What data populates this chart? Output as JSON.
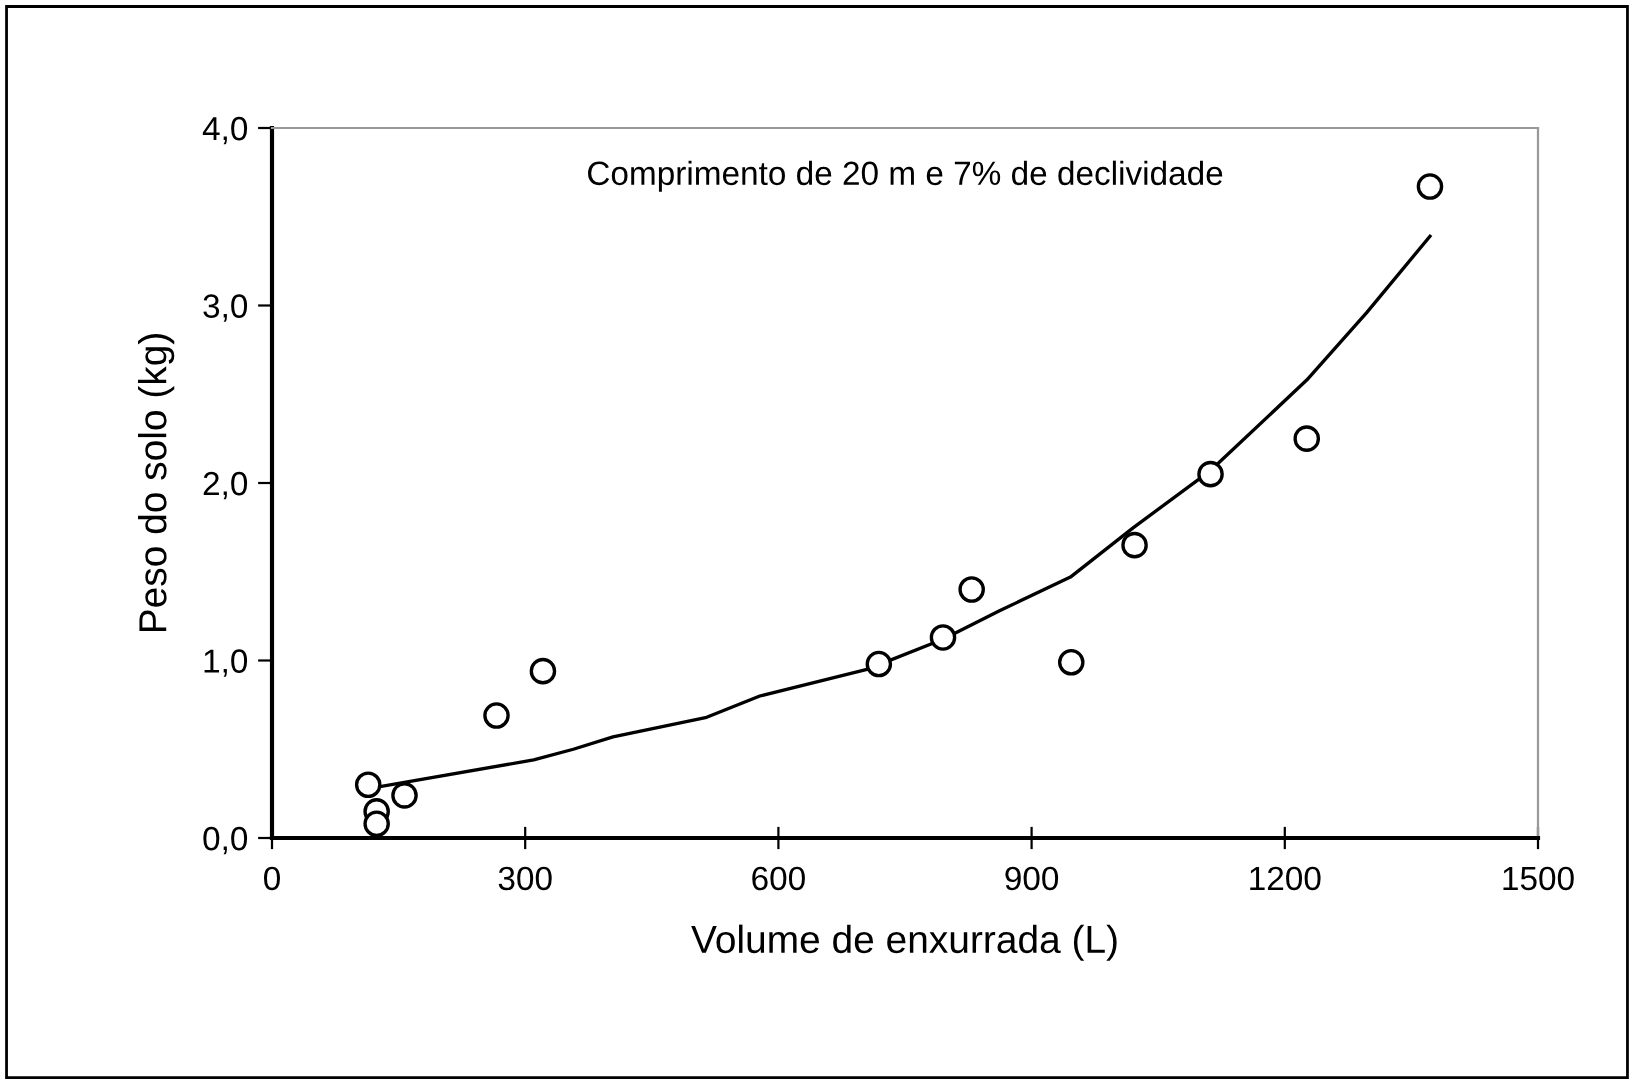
{
  "chart_data": {
    "type": "scatter",
    "xlabel": "Volume de enxurrada (L)",
    "ylabel": "Peso do solo (kg)",
    "annotations": [
      "Comprimento de 20 m e 7% de declividade"
    ],
    "xlim": [
      0,
      1500
    ],
    "xticks": [
      0,
      300,
      600,
      900,
      1200,
      1500
    ],
    "ylim": [
      0,
      4
    ],
    "yticks": [
      {
        "value": 0,
        "label": "0,0"
      },
      {
        "value": 1,
        "label": "1,0"
      },
      {
        "value": 2,
        "label": "2,0"
      },
      {
        "value": 3,
        "label": "3,0"
      },
      {
        "value": 4,
        "label": "4,0"
      }
    ],
    "grid": false,
    "series": [
      {
        "marker": "circle",
        "color": "#000000",
        "x": [
          114,
          124,
          124,
          157,
          266,
          321,
          719,
          795,
          829,
          947,
          1022,
          1112,
          1226,
          1372
        ],
        "values": [
          0.3,
          0.15,
          0.08,
          0.24,
          0.69,
          0.94,
          0.98,
          1.13,
          1.4,
          0.99,
          1.65,
          2.05,
          2.25,
          3.67
        ]
      },
      {
        "type": "line",
        "color": "#000000",
        "marker": "none",
        "line_style": "solid",
        "x": [
          128,
          310,
          357,
          404,
          515,
          578,
          705,
          795,
          862,
          946,
          1021,
          1112,
          1226,
          1297,
          1372
        ],
        "values": [
          0.29,
          0.44,
          0.5,
          0.57,
          0.68,
          0.8,
          0.95,
          1.12,
          1.28,
          1.47,
          1.75,
          2.07,
          2.58,
          2.96,
          3.39
        ]
      }
    ]
  }
}
